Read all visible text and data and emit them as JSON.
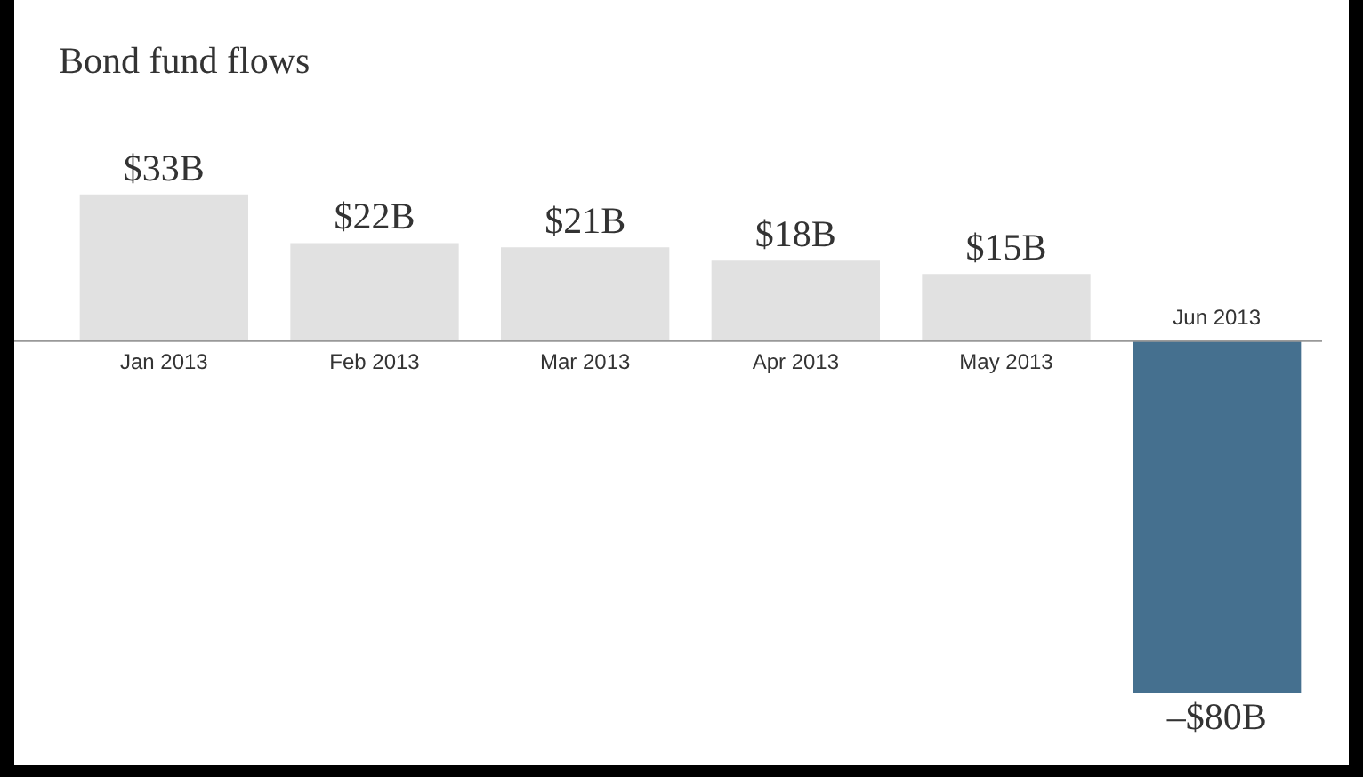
{
  "chart_data": {
    "type": "bar",
    "title": "Bond fund flows",
    "categories": [
      "Jan 2013",
      "Feb 2013",
      "Mar 2013",
      "Apr 2013",
      "May 2013",
      "Jun 2013"
    ],
    "values": [
      33,
      22,
      21,
      18,
      15,
      -80
    ],
    "value_labels": [
      "$33B",
      "$22B",
      "$21B",
      "$18B",
      "$15B",
      "–$80B"
    ],
    "colors": [
      "#e1e1e1",
      "#e1e1e1",
      "#e1e1e1",
      "#e1e1e1",
      "#e1e1e1",
      "#45708f"
    ],
    "legend": false
  }
}
